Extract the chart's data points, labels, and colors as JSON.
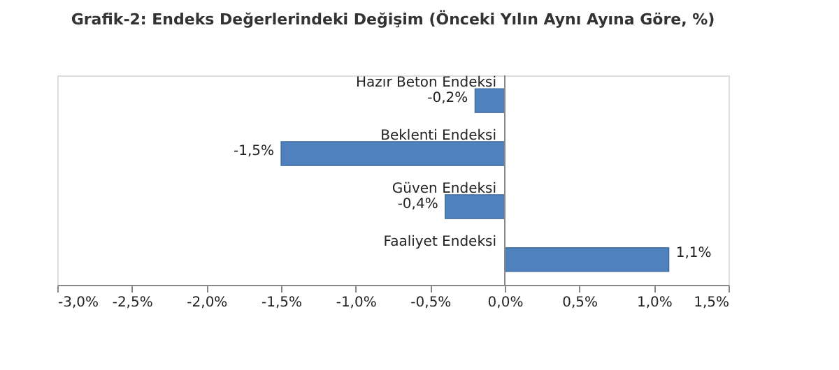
{
  "chart_data": {
    "type": "bar",
    "orientation": "horizontal",
    "title": "Grafik-2: Endeks Değerlerindeki Değişim (Önceki Yılın Aynı Ayına Göre, %)",
    "categories": [
      "Hazır Beton Endeksi",
      "Beklenti Endeksi",
      "Güven Endeksi",
      "Faaliyet Endeksi"
    ],
    "values": [
      -0.2,
      -1.5,
      -0.4,
      1.1
    ],
    "value_labels": [
      "-0,2%",
      "-1,5%",
      "-0,4%",
      "1,1%"
    ],
    "color": "#4f81bd",
    "xlim": [
      -3.0,
      1.5
    ],
    "xticks": [
      {
        "value": -3.0,
        "label": "-3,0%"
      },
      {
        "value": -2.5,
        "label": "-2,5%"
      },
      {
        "value": -2.0,
        "label": "-2,0%"
      },
      {
        "value": -1.5,
        "label": "-1,5%"
      },
      {
        "value": -1.0,
        "label": "-1,0%"
      },
      {
        "value": -0.5,
        "label": "-0,5%"
      },
      {
        "value": 0.0,
        "label": "0,0%"
      },
      {
        "value": 0.5,
        "label": "0,5%"
      },
      {
        "value": 1.0,
        "label": "1,0%"
      },
      {
        "value": 1.5,
        "label": "1,5%"
      }
    ],
    "grid": false
  }
}
